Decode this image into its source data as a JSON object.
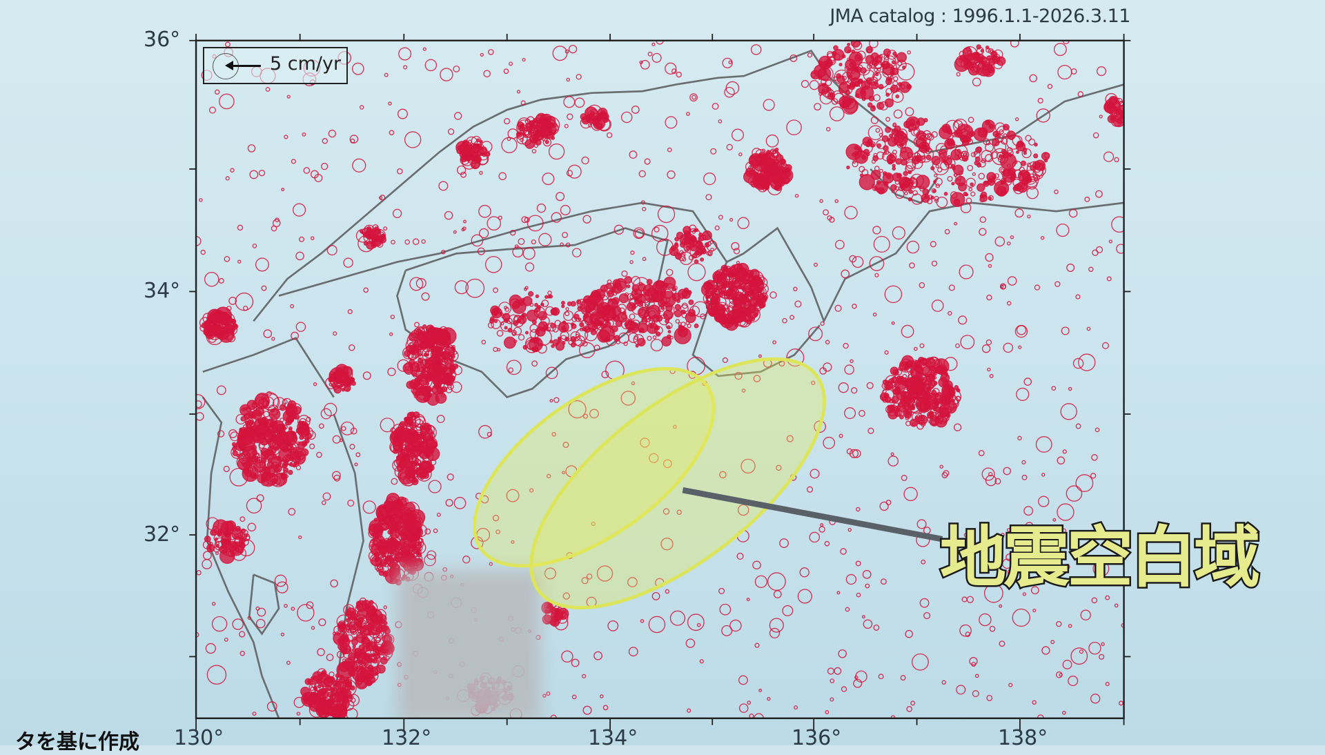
{
  "catalog_label": "JMA catalog : 1996.1.1-2026.3.11",
  "legend": {
    "velocity_label": "5 cm/yr",
    "icon": "arrow-left-icon"
  },
  "axes": {
    "lat_ticks": [
      "36°",
      "34°",
      "32°"
    ],
    "lon_ticks": [
      "130°",
      "132°",
      "134°",
      "136°",
      "138°"
    ]
  },
  "annotation": {
    "label": "地震空白域",
    "fill_color": "#e6ec8e"
  },
  "credit_text": "タを基に作成",
  "colors": {
    "quake": "#d4143c",
    "coast": "#6a6e70",
    "ellipse": "#e4ec5a",
    "background": "#cfe6ee"
  }
}
